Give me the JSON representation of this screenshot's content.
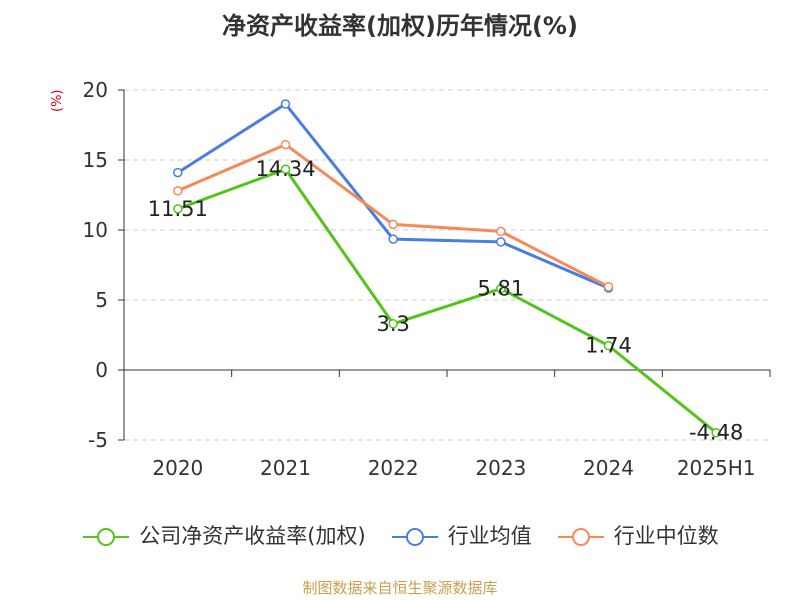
{
  "chart_data": {
    "type": "line",
    "title": "净资产收益率(加权)历年情况(%)",
    "ylabel": "(%)",
    "categories": [
      "2020",
      "2021",
      "2022",
      "2023",
      "2024",
      "2025H1"
    ],
    "ylim": [
      -5,
      20
    ],
    "yticks": [
      -5,
      0,
      5,
      10,
      15,
      20
    ],
    "grid": true,
    "legend_position": "bottom",
    "series": [
      {
        "name": "公司净资产收益率(加权)",
        "color": "#52c41a",
        "values": [
          11.51,
          14.34,
          3.3,
          5.81,
          1.74,
          -4.48
        ],
        "labels": [
          "11.51",
          "14.34",
          "3.3",
          "5.81",
          "1.74",
          "-4.48"
        ]
      },
      {
        "name": "行业均值",
        "color": "#4a7de0",
        "values": [
          14.1,
          19.0,
          9.35,
          9.15,
          5.85,
          null
        ]
      },
      {
        "name": "行业中位数",
        "color": "#f5895a",
        "values": [
          12.8,
          16.1,
          10.4,
          9.9,
          5.95,
          null
        ]
      }
    ]
  },
  "source_note": "制图数据来自恒生聚源数据库"
}
